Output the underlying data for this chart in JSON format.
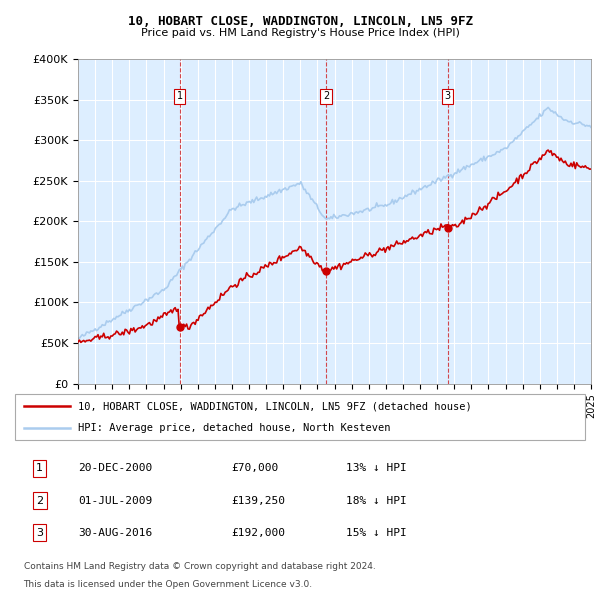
{
  "title": "10, HOBART CLOSE, WADDINGTON, LINCOLN, LN5 9FZ",
  "subtitle": "Price paid vs. HM Land Registry's House Price Index (HPI)",
  "legend_line1": "10, HOBART CLOSE, WADDINGTON, LINCOLN, LN5 9FZ (detached house)",
  "legend_line2": "HPI: Average price, detached house, North Kesteven",
  "footer1": "Contains HM Land Registry data © Crown copyright and database right 2024.",
  "footer2": "This data is licensed under the Open Government Licence v3.0.",
  "hpi_color": "#aaccee",
  "price_color": "#cc0000",
  "background_color": "#ddeeff",
  "table_rows": [
    [
      "1",
      "20-DEC-2000",
      "£70,000",
      "13% ↓ HPI"
    ],
    [
      "2",
      "01-JUL-2009",
      "£139,250",
      "18% ↓ HPI"
    ],
    [
      "3",
      "30-AUG-2016",
      "£192,000",
      "15% ↓ HPI"
    ]
  ],
  "ylim": [
    0,
    400000
  ],
  "yticks": [
    0,
    50000,
    100000,
    150000,
    200000,
    250000,
    300000,
    350000,
    400000
  ],
  "ytick_labels": [
    "£0",
    "£50K",
    "£100K",
    "£150K",
    "£200K",
    "£250K",
    "£300K",
    "£350K",
    "£400K"
  ],
  "x_start_year": 1995,
  "x_end_year": 2025
}
